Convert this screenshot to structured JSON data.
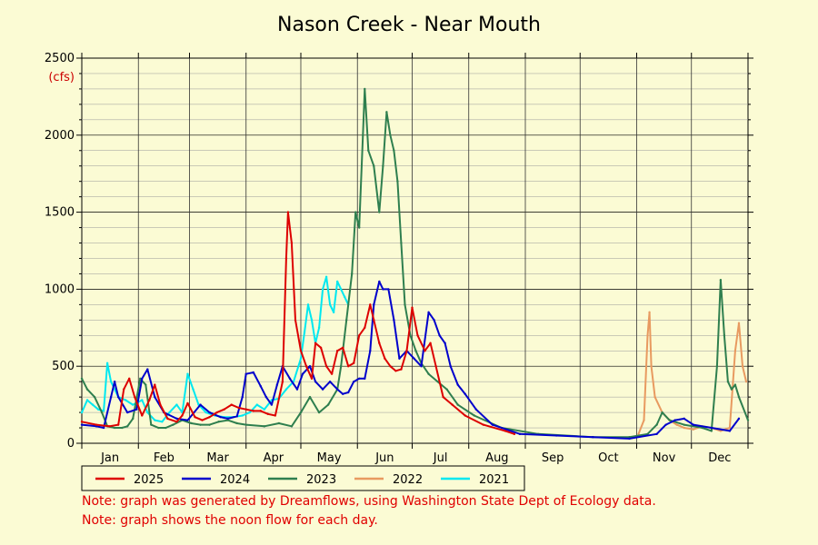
{
  "chart_data": {
    "type": "line",
    "title": "Nason Creek - Near Mouth",
    "unit": "(cfs)",
    "ylim": [
      0,
      2500
    ],
    "yticks": [
      0,
      500,
      1000,
      1500,
      2000,
      2500
    ],
    "xlim": [
      0,
      365
    ],
    "months": [
      "Jan",
      "Feb",
      "Mar",
      "Apr",
      "May",
      "Jun",
      "Jul",
      "Aug",
      "Sep",
      "Oct",
      "Nov",
      "Dec"
    ],
    "grid": true,
    "legend_position": "bottom",
    "series": [
      {
        "name": "2025",
        "color": "#dd0000",
        "points": [
          [
            0,
            140
          ],
          [
            8,
            120
          ],
          [
            15,
            110
          ],
          [
            20,
            120
          ],
          [
            23,
            350
          ],
          [
            26,
            420
          ],
          [
            29,
            300
          ],
          [
            33,
            180
          ],
          [
            37,
            280
          ],
          [
            40,
            380
          ],
          [
            43,
            250
          ],
          [
            47,
            160
          ],
          [
            52,
            140
          ],
          [
            55,
            180
          ],
          [
            58,
            260
          ],
          [
            62,
            170
          ],
          [
            66,
            150
          ],
          [
            70,
            170
          ],
          [
            74,
            200
          ],
          [
            78,
            220
          ],
          [
            82,
            250
          ],
          [
            86,
            230
          ],
          [
            90,
            220
          ],
          [
            94,
            210
          ],
          [
            98,
            210
          ],
          [
            102,
            190
          ],
          [
            106,
            180
          ],
          [
            110,
            400
          ],
          [
            112,
            1200
          ],
          [
            113,
            1500
          ],
          [
            115,
            1300
          ],
          [
            117,
            800
          ],
          [
            120,
            600
          ],
          [
            123,
            500
          ],
          [
            126,
            420
          ],
          [
            128,
            650
          ],
          [
            131,
            620
          ],
          [
            134,
            500
          ],
          [
            137,
            450
          ],
          [
            140,
            600
          ],
          [
            143,
            620
          ],
          [
            146,
            500
          ],
          [
            149,
            520
          ],
          [
            152,
            700
          ],
          [
            155,
            750
          ],
          [
            158,
            900
          ],
          [
            160,
            800
          ],
          [
            163,
            650
          ],
          [
            166,
            550
          ],
          [
            169,
            500
          ],
          [
            172,
            470
          ],
          [
            175,
            480
          ],
          [
            178,
            600
          ],
          [
            181,
            880
          ],
          [
            184,
            700
          ],
          [
            188,
            600
          ],
          [
            191,
            650
          ],
          [
            194,
            500
          ],
          [
            198,
            300
          ],
          [
            203,
            250
          ],
          [
            210,
            180
          ],
          [
            220,
            120
          ],
          [
            232,
            80
          ],
          [
            237,
            60
          ]
        ]
      },
      {
        "name": "2024",
        "color": "#0000cc",
        "points": [
          [
            0,
            120
          ],
          [
            8,
            110
          ],
          [
            12,
            100
          ],
          [
            16,
            300
          ],
          [
            18,
            400
          ],
          [
            20,
            300
          ],
          [
            25,
            200
          ],
          [
            30,
            220
          ],
          [
            33,
            420
          ],
          [
            36,
            480
          ],
          [
            40,
            300
          ],
          [
            45,
            200
          ],
          [
            52,
            160
          ],
          [
            58,
            150
          ],
          [
            65,
            250
          ],
          [
            70,
            200
          ],
          [
            76,
            170
          ],
          [
            80,
            160
          ],
          [
            85,
            175
          ],
          [
            88,
            300
          ],
          [
            90,
            450
          ],
          [
            94,
            460
          ],
          [
            98,
            370
          ],
          [
            101,
            300
          ],
          [
            104,
            250
          ],
          [
            107,
            380
          ],
          [
            110,
            500
          ],
          [
            114,
            420
          ],
          [
            118,
            350
          ],
          [
            121,
            450
          ],
          [
            125,
            500
          ],
          [
            128,
            400
          ],
          [
            132,
            350
          ],
          [
            136,
            400
          ],
          [
            140,
            350
          ],
          [
            143,
            320
          ],
          [
            146,
            330
          ],
          [
            149,
            400
          ],
          [
            152,
            420
          ],
          [
            155,
            420
          ],
          [
            158,
            600
          ],
          [
            160,
            900
          ],
          [
            163,
            1050
          ],
          [
            165,
            1000
          ],
          [
            168,
            1000
          ],
          [
            171,
            800
          ],
          [
            174,
            550
          ],
          [
            178,
            600
          ],
          [
            182,
            550
          ],
          [
            186,
            500
          ],
          [
            190,
            850
          ],
          [
            193,
            800
          ],
          [
            196,
            700
          ],
          [
            199,
            650
          ],
          [
            202,
            500
          ],
          [
            206,
            380
          ],
          [
            210,
            320
          ],
          [
            216,
            220
          ],
          [
            225,
            120
          ],
          [
            240,
            60
          ],
          [
            260,
            50
          ],
          [
            280,
            40
          ],
          [
            300,
            30
          ],
          [
            315,
            60
          ],
          [
            320,
            120
          ],
          [
            325,
            150
          ],
          [
            330,
            160
          ],
          [
            335,
            120
          ],
          [
            345,
            100
          ],
          [
            355,
            80
          ],
          [
            360,
            160
          ]
        ]
      },
      {
        "name": "2023",
        "color": "#2f7f4f",
        "points": [
          [
            0,
            420
          ],
          [
            3,
            350
          ],
          [
            7,
            300
          ],
          [
            11,
            200
          ],
          [
            14,
            110
          ],
          [
            18,
            100
          ],
          [
            22,
            100
          ],
          [
            25,
            110
          ],
          [
            28,
            160
          ],
          [
            32,
            420
          ],
          [
            35,
            380
          ],
          [
            38,
            120
          ],
          [
            42,
            100
          ],
          [
            46,
            100
          ],
          [
            50,
            120
          ],
          [
            55,
            150
          ],
          [
            60,
            130
          ],
          [
            65,
            120
          ],
          [
            70,
            120
          ],
          [
            75,
            140
          ],
          [
            80,
            150
          ],
          [
            85,
            130
          ],
          [
            90,
            120
          ],
          [
            100,
            110
          ],
          [
            108,
            130
          ],
          [
            115,
            110
          ],
          [
            120,
            200
          ],
          [
            125,
            300
          ],
          [
            130,
            200
          ],
          [
            135,
            250
          ],
          [
            140,
            350
          ],
          [
            142,
            500
          ],
          [
            145,
            800
          ],
          [
            148,
            1100
          ],
          [
            150,
            1500
          ],
          [
            152,
            1400
          ],
          [
            154,
            2000
          ],
          [
            155,
            2300
          ],
          [
            157,
            1900
          ],
          [
            160,
            1800
          ],
          [
            163,
            1500
          ],
          [
            165,
            1800
          ],
          [
            167,
            2150
          ],
          [
            169,
            2000
          ],
          [
            171,
            1900
          ],
          [
            173,
            1700
          ],
          [
            175,
            1300
          ],
          [
            177,
            900
          ],
          [
            180,
            700
          ],
          [
            183,
            600
          ],
          [
            186,
            520
          ],
          [
            190,
            450
          ],
          [
            195,
            400
          ],
          [
            200,
            350
          ],
          [
            206,
            250
          ],
          [
            215,
            180
          ],
          [
            230,
            100
          ],
          [
            250,
            60
          ],
          [
            280,
            40
          ],
          [
            300,
            40
          ],
          [
            310,
            60
          ],
          [
            315,
            120
          ],
          [
            318,
            200
          ],
          [
            322,
            150
          ],
          [
            330,
            120
          ],
          [
            340,
            100
          ],
          [
            345,
            80
          ],
          [
            348,
            500
          ],
          [
            350,
            1060
          ],
          [
            352,
            700
          ],
          [
            354,
            400
          ],
          [
            356,
            350
          ],
          [
            358,
            380
          ],
          [
            360,
            300
          ],
          [
            365,
            150
          ]
        ]
      },
      {
        "name": "2022",
        "color": "#e89a60",
        "points": [
          [
            305,
            60
          ],
          [
            308,
            150
          ],
          [
            310,
            700
          ],
          [
            311,
            850
          ],
          [
            312,
            500
          ],
          [
            314,
            300
          ],
          [
            318,
            200
          ],
          [
            322,
            150
          ],
          [
            326,
            120
          ],
          [
            330,
            100
          ],
          [
            335,
            90
          ],
          [
            340,
            110
          ],
          [
            345,
            100
          ],
          [
            350,
            80
          ],
          [
            355,
            100
          ],
          [
            358,
            600
          ],
          [
            360,
            780
          ],
          [
            362,
            500
          ],
          [
            364,
            400
          ]
        ]
      },
      {
        "name": "2021",
        "color": "#00e8f0",
        "points": [
          [
            0,
            200
          ],
          [
            3,
            280
          ],
          [
            6,
            250
          ],
          [
            9,
            220
          ],
          [
            12,
            210
          ],
          [
            14,
            520
          ],
          [
            16,
            400
          ],
          [
            20,
            300
          ],
          [
            24,
            280
          ],
          [
            28,
            250
          ],
          [
            33,
            280
          ],
          [
            36,
            200
          ],
          [
            40,
            150
          ],
          [
            44,
            140
          ],
          [
            48,
            200
          ],
          [
            52,
            250
          ],
          [
            55,
            200
          ],
          [
            58,
            450
          ],
          [
            61,
            350
          ],
          [
            64,
            250
          ],
          [
            68,
            200
          ],
          [
            73,
            180
          ],
          [
            78,
            170
          ],
          [
            83,
            170
          ],
          [
            88,
            180
          ],
          [
            92,
            200
          ],
          [
            96,
            250
          ],
          [
            100,
            220
          ],
          [
            104,
            280
          ],
          [
            108,
            290
          ],
          [
            112,
            350
          ],
          [
            116,
            400
          ],
          [
            120,
            550
          ],
          [
            122,
            720
          ],
          [
            124,
            900
          ],
          [
            126,
            800
          ],
          [
            128,
            650
          ],
          [
            130,
            750
          ],
          [
            132,
            1000
          ],
          [
            134,
            1080
          ],
          [
            136,
            900
          ],
          [
            138,
            850
          ],
          [
            140,
            1050
          ],
          [
            142,
            1000
          ],
          [
            144,
            950
          ],
          [
            146,
            900
          ]
        ]
      }
    ]
  },
  "notes": [
    "Note: graph was generated by Dreamflows, using Washington State Dept of Ecology data.",
    "Note: graph shows the noon flow for each day."
  ]
}
